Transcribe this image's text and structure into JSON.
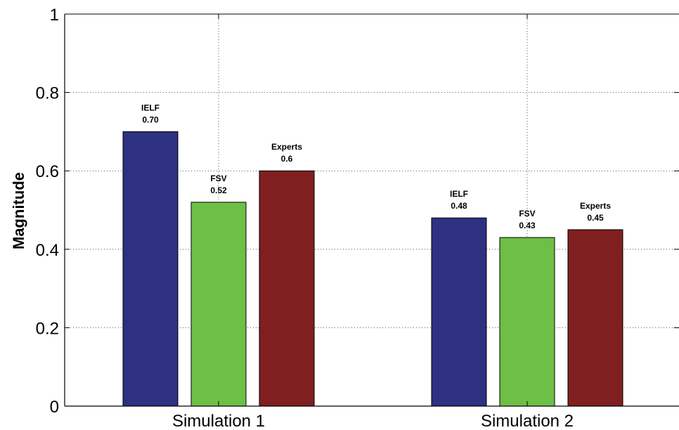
{
  "chart_data": {
    "type": "bar",
    "title": "",
    "xlabel": "",
    "ylabel": "Magnitude",
    "ylim": [
      0,
      1
    ],
    "yticks": [
      "0",
      "0.2",
      "0.4",
      "0.6",
      "0.8",
      "1"
    ],
    "grid": true,
    "legend": "none",
    "categories": [
      "Simulation 1",
      "Simulation 2"
    ],
    "series": [
      {
        "name": "IELF",
        "color": "#2e3082",
        "values": [
          0.7,
          0.48
        ],
        "labels": [
          "IELF\n0.70",
          "IELF\n0.48"
        ]
      },
      {
        "name": "FSV",
        "color": "#6dbf45",
        "values": [
          0.52,
          0.43
        ],
        "labels": [
          "FSV\n0.52",
          "FSV\n0.43"
        ]
      },
      {
        "name": "Experts",
        "color": "#7f1f1f",
        "values": [
          0.6,
          0.45
        ],
        "labels": [
          "Experts\n0.6",
          "Experts\n0.45"
        ]
      }
    ]
  }
}
